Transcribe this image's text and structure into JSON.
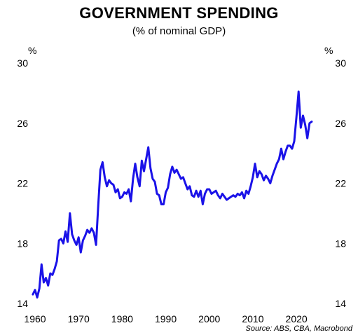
{
  "chart_data": {
    "type": "line",
    "title": "GOVERNMENT SPENDING",
    "subtitle": "(% of nominal GDP)",
    "ylabel_left": "%",
    "ylabel_right": "%",
    "source": "Source: ABS, CBA, Macrobond",
    "xlim": [
      1960,
      2024
    ],
    "ylim": [
      14,
      30
    ],
    "x_ticks": [
      1960,
      1970,
      1980,
      1990,
      2000,
      2010,
      2020
    ],
    "y_ticks": [
      14,
      18,
      22,
      26,
      30
    ],
    "grid": false,
    "line_color": "#1a12e8",
    "series": [
      {
        "x": [
          1959.5,
          1960.0,
          1960.5,
          1961.0,
          1961.5,
          1962.0,
          1962.5,
          1963.0,
          1963.5,
          1964.0,
          1964.5,
          1965.0,
          1965.5,
          1966.0,
          1966.5,
          1967.0,
          1967.5,
          1968.0,
          1968.5,
          1969.0,
          1969.5,
          1970.0,
          1970.5,
          1971.0,
          1971.5,
          1972.0,
          1972.5,
          1973.0,
          1973.5,
          1974.0,
          1974.5,
          1975.0,
          1975.5,
          1976.0,
          1976.5,
          1977.0,
          1977.5,
          1978.0,
          1978.5,
          1979.0,
          1979.5,
          1980.0,
          1980.5,
          1981.0,
          1981.5,
          1982.0,
          1982.5,
          1983.0,
          1983.5,
          1984.0,
          1984.5,
          1985.0,
          1985.5,
          1986.0,
          1986.5,
          1987.0,
          1987.5,
          1988.0,
          1988.5,
          1989.0,
          1989.5,
          1990.0,
          1990.5,
          1991.0,
          1991.5,
          1992.0,
          1992.5,
          1993.0,
          1993.5,
          1994.0,
          1994.5,
          1995.0,
          1995.5,
          1996.0,
          1996.5,
          1997.0,
          1997.5,
          1998.0,
          1998.5,
          1999.0,
          1999.5,
          2000.0,
          2000.5,
          2001.0,
          2001.5,
          2002.0,
          2002.5,
          2003.0,
          2003.5,
          2004.0,
          2004.5,
          2005.0,
          2005.5,
          2006.0,
          2006.5,
          2007.0,
          2007.5,
          2008.0,
          2008.5,
          2009.0,
          2009.5,
          2010.0,
          2010.5,
          2011.0,
          2011.5,
          2012.0,
          2012.5,
          2013.0,
          2013.5,
          2014.0,
          2014.5,
          2015.0,
          2015.5,
          2016.0,
          2016.5,
          2017.0,
          2017.5,
          2018.0,
          2018.5,
          2019.0,
          2019.5,
          2020.0,
          2020.5,
          2021.0,
          2021.5,
          2022.0,
          2022.5,
          2023.0,
          2023.5
        ],
        "y": [
          14.6,
          14.9,
          14.4,
          15.0,
          16.6,
          15.4,
          15.7,
          15.2,
          16.0,
          15.9,
          16.3,
          16.8,
          18.2,
          18.3,
          18.0,
          18.8,
          18.1,
          20.0,
          18.6,
          18.2,
          17.9,
          18.4,
          17.4,
          18.2,
          18.5,
          18.9,
          18.7,
          19.0,
          18.7,
          17.9,
          20.5,
          22.9,
          23.4,
          22.4,
          21.8,
          22.2,
          22.0,
          21.9,
          21.4,
          21.6,
          21.0,
          21.1,
          21.4,
          21.3,
          21.6,
          20.8,
          22.3,
          23.3,
          22.4,
          21.8,
          23.5,
          22.8,
          23.6,
          24.4,
          23.0,
          22.3,
          22.1,
          21.3,
          21.2,
          20.6,
          20.6,
          21.4,
          21.7,
          22.6,
          23.1,
          22.7,
          22.9,
          22.6,
          22.3,
          22.4,
          22.0,
          21.6,
          21.8,
          21.2,
          21.1,
          21.5,
          21.1,
          21.5,
          20.6,
          21.3,
          21.6,
          21.6,
          21.3,
          21.4,
          21.5,
          21.2,
          21.0,
          21.3,
          21.1,
          20.9,
          21.0,
          21.1,
          21.2,
          21.1,
          21.3,
          21.2,
          21.4,
          21.0,
          21.5,
          21.3,
          21.8,
          22.4,
          23.3,
          22.4,
          22.8,
          22.6,
          22.2,
          22.5,
          22.3,
          22.0,
          22.5,
          22.9,
          23.3,
          23.6,
          24.3,
          23.6,
          24.1,
          24.5,
          24.5,
          24.3,
          24.8,
          26.4,
          28.1,
          25.7,
          26.5,
          25.9,
          25.0,
          26.0,
          26.1
        ]
      }
    ]
  }
}
